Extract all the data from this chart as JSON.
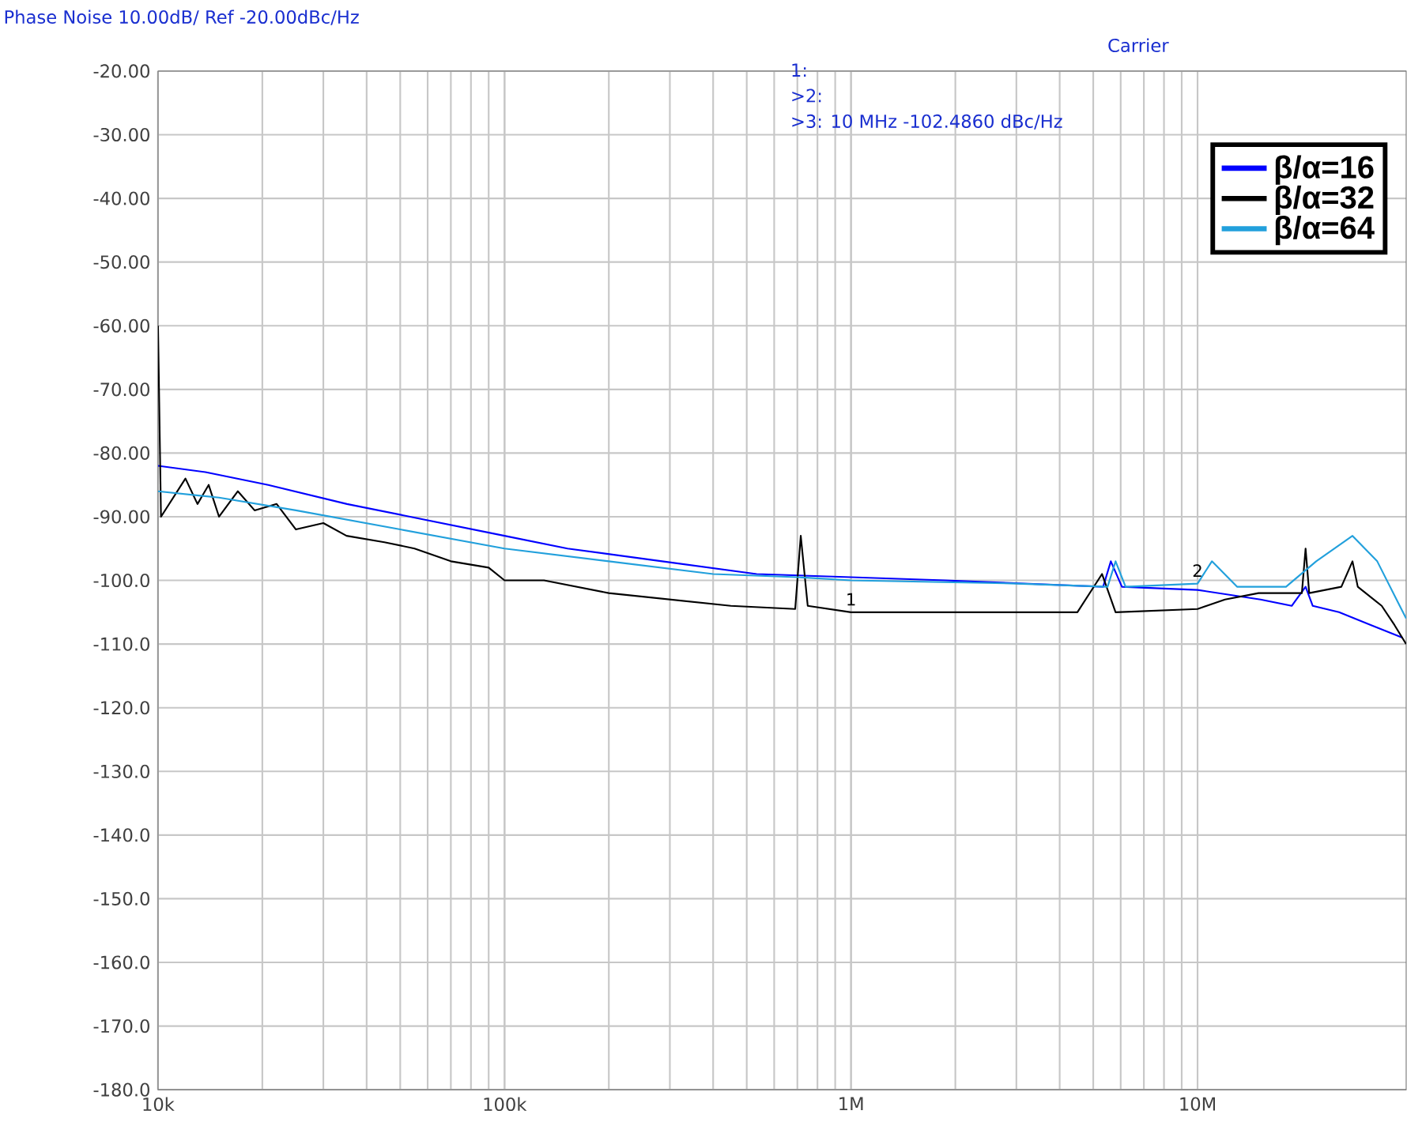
{
  "chart_data": {
    "type": "line",
    "title": "Phase Noise 10.00dB/ Ref -20.00dBc/Hz",
    "log": "x",
    "grid": true,
    "legend": "top right",
    "marker": "none",
    "line_style": "solid",
    "xlim": [
      10000,
      40000000
    ],
    "ylim": [
      -180,
      -20
    ],
    "xticks": [
      {
        "value": 10000,
        "label": "10k"
      },
      {
        "value": 100000,
        "label": "100k"
      },
      {
        "value": 1000000,
        "label": "1M"
      },
      {
        "value": 10000000,
        "label": "10M"
      }
    ],
    "yticks": [
      {
        "value": -20,
        "label": "-20.00"
      },
      {
        "value": -30,
        "label": "-30.00"
      },
      {
        "value": -40,
        "label": "-40.00"
      },
      {
        "value": -50,
        "label": "-50.00"
      },
      {
        "value": -60,
        "label": "-60.00"
      },
      {
        "value": -70,
        "label": "-70.00"
      },
      {
        "value": -80,
        "label": "-80.00"
      },
      {
        "value": -90,
        "label": "-90.00"
      },
      {
        "value": -100,
        "label": "-100.0"
      },
      {
        "value": -110,
        "label": "-110.0"
      },
      {
        "value": -120,
        "label": "-120.0"
      },
      {
        "value": -130,
        "label": "-130.0"
      },
      {
        "value": -140,
        "label": "-140.0"
      },
      {
        "value": -150,
        "label": "-150.0"
      },
      {
        "value": -160,
        "label": "-160.0"
      },
      {
        "value": -170,
        "label": "-170.0"
      },
      {
        "value": -180,
        "label": "-180.0"
      }
    ],
    "series": [
      {
        "name": "β/α=16",
        "color": "#0000ff",
        "x": [
          10000,
          13700,
          20800,
          35100,
          53400,
          100000,
          152000,
          285000,
          534000,
          1000000,
          1870000,
          3160000,
          5340000,
          5620000,
          6050000,
          10000000,
          15200000,
          18700000,
          20500000,
          21500000,
          25600000,
          31600000,
          39000000
        ],
        "values": [
          -82,
          -83,
          -85,
          -88,
          -90,
          -93,
          -95,
          -97,
          -99,
          -99.5,
          -100,
          -100.5,
          -101,
          -97,
          -101,
          -101.5,
          -103,
          -104,
          -101,
          -104,
          -105,
          -107,
          -109
        ]
      },
      {
        "name": "β/α=32",
        "color": "#000000",
        "x": [
          10000,
          10200,
          12000,
          13000,
          14000,
          15000,
          17000,
          19000,
          22000,
          25000,
          30000,
          35000,
          45000,
          55000,
          70000,
          90000,
          100000,
          130000,
          200000,
          300000,
          450000,
          690000,
          716000,
          750000,
          1000000,
          2000000,
          4500000,
          5300000,
          5800000,
          10000000,
          12000000,
          15000000,
          20000000,
          20500000,
          21000000,
          26000000,
          28000000,
          29000000,
          34000000,
          37000000,
          40000000
        ],
        "values": [
          -60,
          -90,
          -84,
          -88,
          -85,
          -90,
          -86,
          -89,
          -88,
          -92,
          -91,
          -93,
          -94,
          -95,
          -97,
          -98,
          -100,
          -100,
          -102,
          -103,
          -104,
          -104.5,
          -93,
          -104,
          -105,
          -105,
          -105,
          -99,
          -105,
          -104.5,
          -103,
          -102,
          -102,
          -95,
          -102,
          -101,
          -97,
          -101,
          -104,
          -107,
          -110
        ]
      },
      {
        "name": "β/α=64",
        "color": "#22a0dc",
        "x": [
          10000,
          15000,
          25000,
          50000,
          100000,
          200000,
          400000,
          700000,
          1000000,
          3000000,
          5500000,
          5800000,
          6200000,
          10000000,
          11000000,
          13000000,
          18000000,
          22000000,
          28000000,
          33000000,
          40000000
        ],
        "values": [
          -86,
          -87,
          -89,
          -92,
          -95,
          -97,
          -99,
          -99.5,
          -100,
          -100.5,
          -101,
          -97,
          -101,
          -100.5,
          -97,
          -101,
          -101,
          -97,
          -93,
          -97,
          -106
        ]
      }
    ],
    "annotations": [
      "Carrier",
      "1:",
      ">2:",
      ">3:  10 MHz  -102.4860 dBc/Hz",
      {
        "text": "1",
        "x": 1000000,
        "y": -105
      },
      {
        "text": "2",
        "x": 10000000,
        "y": -100.5
      }
    ]
  }
}
